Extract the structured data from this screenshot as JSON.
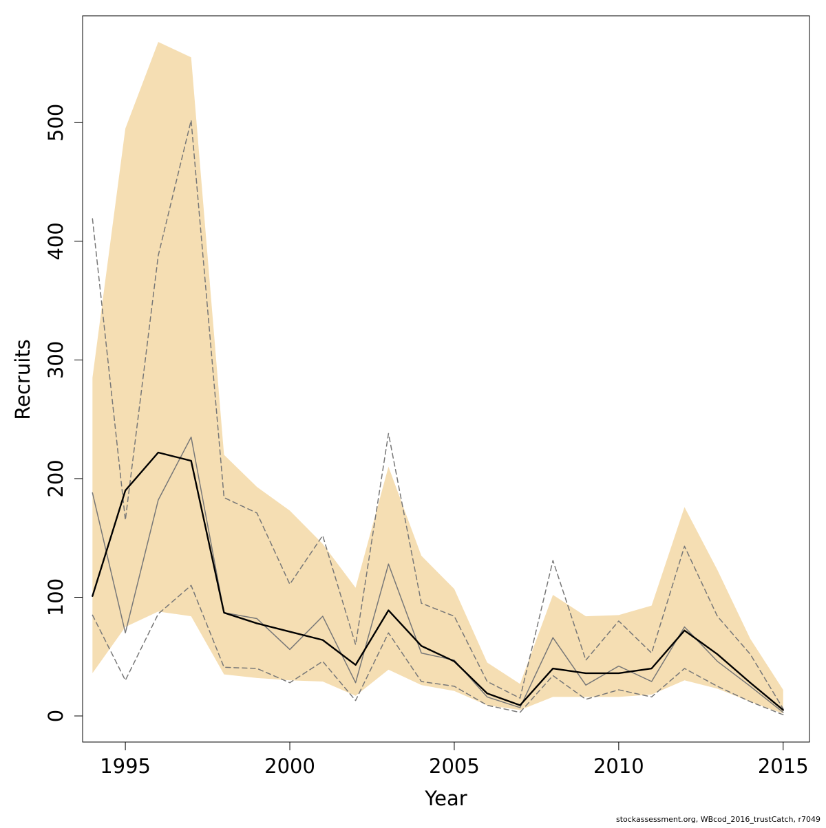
{
  "footer_text": "stockassessment.org, WBcod_2016_trustCatch, r7049",
  "colors": {
    "band": "#f5deb3",
    "estimate": "#000000",
    "observed": "#777777",
    "dashed": "#777777",
    "axis": "#000000",
    "background": "#ffffff"
  },
  "chart_data": {
    "type": "line",
    "title": "",
    "xlabel": "Year",
    "ylabel": "Recruits",
    "xlim": [
      1993.7,
      2015.8
    ],
    "ylim": [
      -22,
      590
    ],
    "x_ticks": [
      1995,
      2000,
      2005,
      2010,
      2015
    ],
    "y_ticks": [
      0,
      100,
      200,
      300,
      400,
      500
    ],
    "grid": false,
    "x": [
      1994,
      1995,
      1996,
      1997,
      1998,
      1999,
      2000,
      2001,
      2002,
      2003,
      2004,
      2005,
      2006,
      2007,
      2008,
      2009,
      2010,
      2011,
      2012,
      2013,
      2014,
      2015
    ],
    "confidence_band": {
      "upper": [
        285,
        495,
        568,
        555,
        220,
        193,
        173,
        145,
        108,
        210,
        135,
        107,
        45,
        27,
        102,
        84,
        85,
        93,
        176,
        123,
        65,
        22
      ],
      "lower": [
        36,
        75,
        88,
        84,
        35,
        32,
        30,
        29,
        17,
        39,
        26,
        21,
        9,
        5,
        16,
        16,
        16,
        18,
        30,
        23,
        12,
        2
      ]
    },
    "series": [
      {
        "values": [
          101,
          190,
          222,
          215,
          87,
          78,
          71,
          64,
          43,
          89,
          59,
          46,
          19,
          9,
          40,
          36,
          36,
          40,
          72,
          52,
          28,
          5
        ]
      },
      {
        "values": [
          188,
          70,
          182,
          235,
          87,
          82,
          56,
          84,
          28,
          128,
          53,
          47,
          16,
          7,
          66,
          26,
          42,
          29,
          75,
          46,
          25,
          3
        ]
      },
      {
        "values": [
          419,
          165,
          388,
          502,
          184,
          171,
          111,
          152,
          60,
          238,
          95,
          84,
          29,
          15,
          131,
          47,
          80,
          53,
          143,
          84,
          52,
          6
        ]
      },
      {
        "values": [
          85,
          30,
          86,
          110,
          41,
          40,
          28,
          46,
          13,
          70,
          29,
          25,
          9,
          3,
          34,
          14,
          22,
          16,
          40,
          25,
          12,
          1
        ]
      }
    ]
  }
}
